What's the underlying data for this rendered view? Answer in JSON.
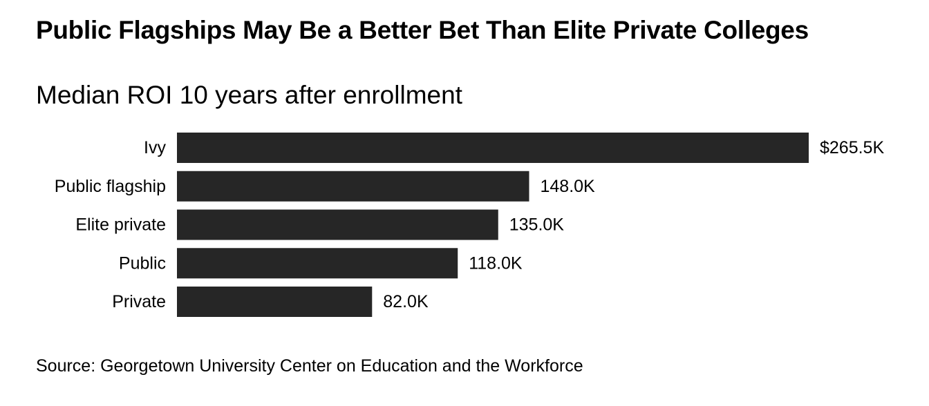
{
  "chart_data": {
    "type": "bar",
    "orientation": "horizontal",
    "title": "Public Flagships May Be a Better Bet Than Elite Private Colleges",
    "subtitle": "Median ROI 10 years after enrollment",
    "categories": [
      "Ivy",
      "Public flagship",
      "Elite private",
      "Public",
      "Private"
    ],
    "values": [
      265.5,
      148.0,
      135.0,
      118.0,
      82.0
    ],
    "value_labels": [
      "$265.5K",
      "148.0K",
      "135.0K",
      "118.0K",
      "82.0K"
    ],
    "unit": "thousand USD",
    "xlim": [
      0,
      265.5
    ],
    "grid": false,
    "legend": "none",
    "bar_color": "#262626",
    "source": "Source: Georgetown University Center on Education and the Workforce"
  }
}
